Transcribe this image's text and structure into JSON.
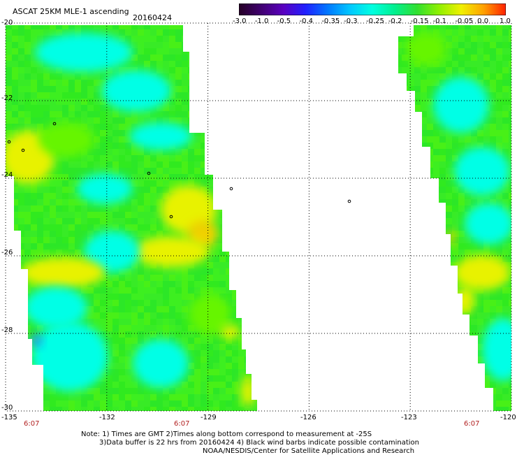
{
  "header": {
    "title": "ASCAT 25KM MLE-1 ascending",
    "date": "20160424"
  },
  "colorbar": {
    "labels": [
      "-3.0",
      "-1.0",
      "-0.5",
      "-0.4",
      "-0.35",
      "-0.3",
      "-0.25",
      "-0.2",
      "-0.15",
      "-0.1",
      "-0.05",
      "0.0",
      "1.0"
    ],
    "colors": [
      "#250025",
      "#400070",
      "#5a00c0",
      "#2020ff",
      "#0078ff",
      "#00c8ff",
      "#00ffe0",
      "#00f090",
      "#30e030",
      "#90f000",
      "#f0f000",
      "#ffa000",
      "#ff2000"
    ]
  },
  "map": {
    "lat_labels": [
      "-20",
      "-22",
      "-24",
      "-26",
      "-28",
      "-30"
    ],
    "lon_labels": [
      "-135",
      "-132",
      "-129",
      "-126",
      "-123",
      "-120"
    ],
    "time_labels": [
      "6:07",
      "6:07",
      "6:07"
    ],
    "colors": {
      "green": "#33ee22",
      "light_green": "#66f500",
      "cyan": "#00ffe6",
      "yellow": "#e8f200",
      "orange": "#f0d000",
      "blue": "#1e90ff",
      "grid": "#000000"
    }
  },
  "footer": {
    "line1": "Note: 1) Times are GMT 2)Times along bottom correspond to measurement at -25S",
    "line2": "3)Data buffer is 22 hrs from 20160424 4) Black wind barbs indicate possible contamination",
    "line3": "NOAA/NESDIS/Center for Satellite Applications and Research"
  }
}
